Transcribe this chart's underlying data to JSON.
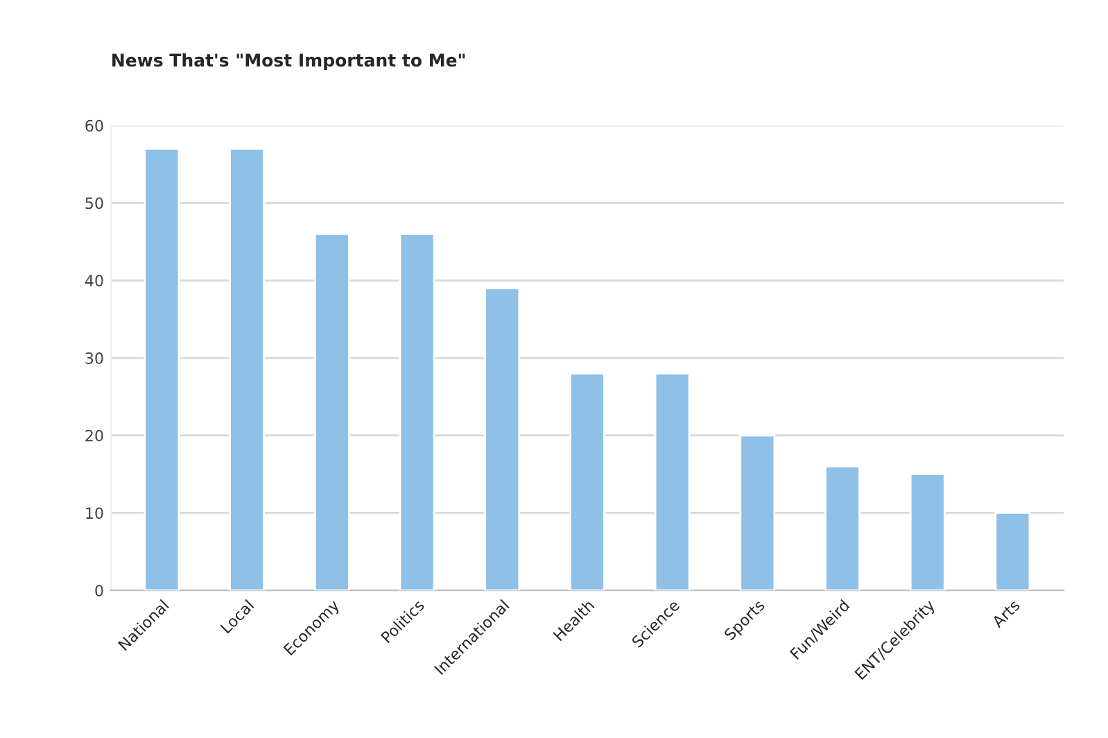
{
  "chart_data": {
    "type": "bar",
    "title": "News That's \"Most Important to Me\"",
    "categories": [
      "National",
      "Local",
      "Economy",
      "Politics",
      "International",
      "Health",
      "Science",
      "Sports",
      "Fun/Weird",
      "ENT/Celebrity",
      "Arts"
    ],
    "values": [
      57,
      57,
      46,
      46,
      39,
      28,
      28,
      20,
      16,
      15,
      10
    ],
    "color": "#8fc0e8",
    "ylim": [
      0,
      60
    ],
    "yticks": [
      0,
      10,
      20,
      30,
      40,
      50,
      60
    ],
    "grid": "y",
    "legend": false
  }
}
